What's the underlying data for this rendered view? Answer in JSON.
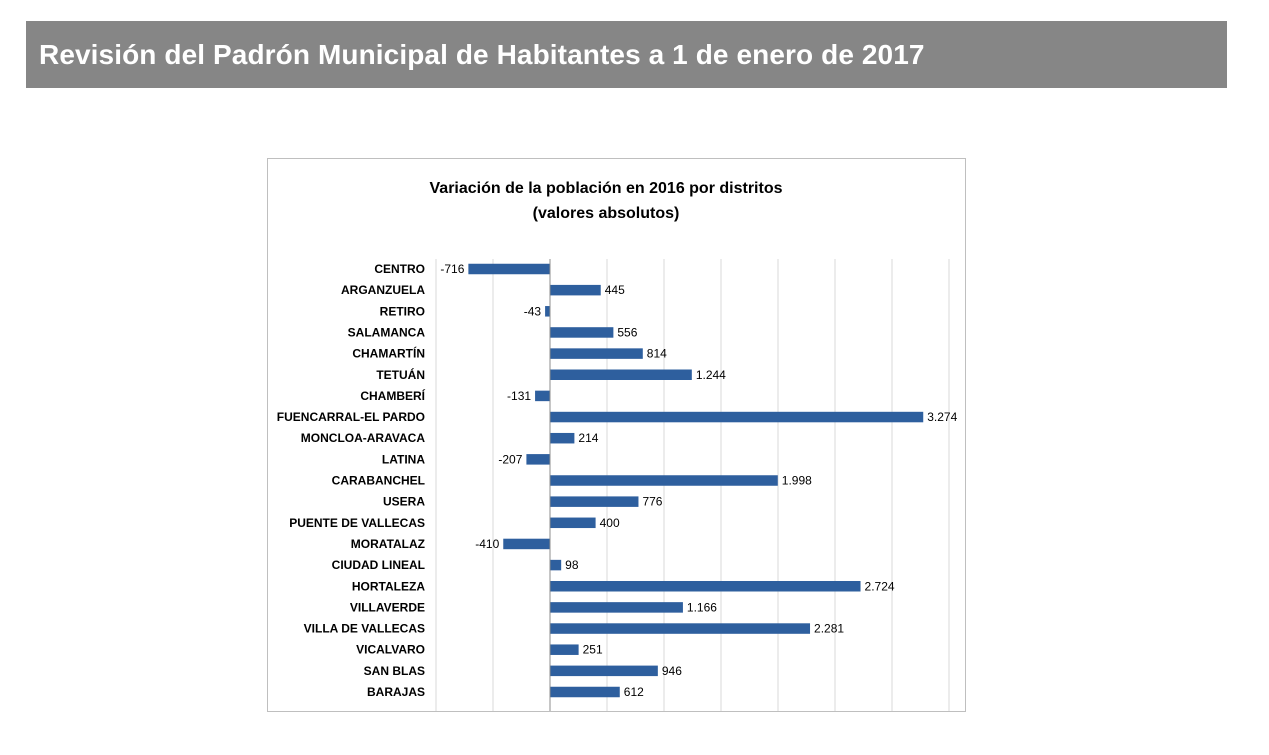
{
  "page": {
    "title": "Revisión del Padrón Municipal de Habitantes a 1 de enero de 2017"
  },
  "colors": {
    "banner_bg": "#868686",
    "bar": "#2e5f9e",
    "gridline": "#d9d9d9"
  },
  "chart_data": {
    "type": "bar",
    "orientation": "horizontal",
    "title": "Variación de la población en 2016 por distritos",
    "subtitle": "(valores absolutos)",
    "xlabel": "",
    "ylabel": "",
    "grid": true,
    "xlim": [
      -1000,
      3500
    ],
    "grid_step": 500,
    "categories": [
      "CENTRO",
      "ARGANZUELA",
      "RETIRO",
      "SALAMANCA",
      "CHAMARTÍN",
      "TETUÁN",
      "CHAMBERÍ",
      "FUENCARRAL-EL PARDO",
      "MONCLOA-ARAVACA",
      "LATINA",
      "CARABANCHEL",
      "USERA",
      "PUENTE DE VALLECAS",
      "MORATALAZ",
      "CIUDAD LINEAL",
      "HORTALEZA",
      "VILLAVERDE",
      "VILLA DE VALLECAS",
      "VICALVARO",
      "SAN BLAS",
      "BARAJAS"
    ],
    "values": [
      -716,
      445,
      -43,
      556,
      814,
      1244,
      -131,
      3274,
      214,
      -207,
      1998,
      776,
      400,
      -410,
      98,
      2724,
      1166,
      2281,
      251,
      946,
      612
    ],
    "value_labels": [
      "-716",
      "445",
      "-43",
      "556",
      "814",
      "1.244",
      "-131",
      "3.274",
      "214",
      "-207",
      "1.998",
      "776",
      "400",
      "-410",
      "98",
      "2.724",
      "1.166",
      "2.281",
      "251",
      "946",
      "612"
    ]
  }
}
